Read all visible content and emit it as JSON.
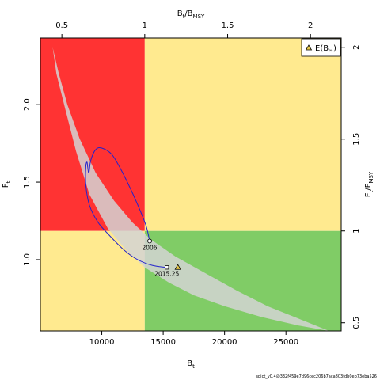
{
  "chart_data": {
    "type": "line",
    "x_axis": {
      "label": "B",
      "label_sub": "t",
      "lim": [
        5000,
        29500
      ],
      "ticks": [
        10000,
        15000,
        20000,
        25000
      ]
    },
    "y_axis": {
      "label": "F",
      "label_sub": "t",
      "lim": [
        0.54,
        2.43
      ],
      "ticks": [
        1.0,
        1.5,
        2.0
      ]
    },
    "top_axis": {
      "label": "B",
      "label_sub": "t",
      "label_tail": "/B",
      "label_sub2": "MSY",
      "ticks": [
        "0.5",
        "1",
        "1.5",
        "2"
      ],
      "tick_values": [
        0.5,
        1,
        1.5,
        2
      ]
    },
    "right_axis": {
      "label": "F",
      "label_sub": "t",
      "label_tail": "/F",
      "label_sub2": "MSY",
      "ticks": [
        "0.5",
        "1",
        "1.5",
        "2"
      ],
      "tick_values": [
        0.5,
        1,
        1.5,
        2
      ]
    },
    "reference": {
      "Bmsy": 13500,
      "Fmsy": 1.185
    },
    "regions": [
      {
        "name": "overfished-overfishing",
        "color": "#ff3333"
      },
      {
        "name": "overfishing-healthy-stock",
        "color": "#ffea8f"
      },
      {
        "name": "overfished-no-overfishing",
        "color": "#ffea8f"
      },
      {
        "name": "sustainable",
        "color": "#80cc66"
      }
    ],
    "confidence_region": {
      "color": "#d3d3d3",
      "outline": [
        [
          6000,
          2.37
        ],
        [
          6500,
          2.2
        ],
        [
          7200,
          2.0
        ],
        [
          8200,
          1.78
        ],
        [
          9500,
          1.56
        ],
        [
          11000,
          1.38
        ],
        [
          12500,
          1.24
        ],
        [
          14000,
          1.13
        ],
        [
          16000,
          1.02
        ],
        [
          18500,
          0.91
        ],
        [
          21000,
          0.8
        ],
        [
          23500,
          0.7
        ],
        [
          26000,
          0.62
        ],
        [
          28500,
          0.54
        ],
        [
          26000,
          0.575
        ],
        [
          23000,
          0.63
        ],
        [
          20000,
          0.7
        ],
        [
          17500,
          0.77
        ],
        [
          15500,
          0.85
        ],
        [
          13500,
          0.95
        ],
        [
          12000,
          1.06
        ],
        [
          10500,
          1.2
        ],
        [
          9000,
          1.42
        ],
        [
          7900,
          1.7
        ],
        [
          7000,
          1.98
        ],
        [
          6300,
          2.2
        ],
        [
          6000,
          2.37
        ]
      ]
    },
    "trajectory": {
      "color": "#2222cc",
      "points": [
        [
          13900,
          1.12
        ],
        [
          13600,
          1.22
        ],
        [
          13000,
          1.34
        ],
        [
          12200,
          1.48
        ],
        [
          11500,
          1.59
        ],
        [
          10800,
          1.68
        ],
        [
          10000,
          1.72
        ],
        [
          9500,
          1.71
        ],
        [
          9100,
          1.64
        ],
        [
          8950,
          1.56
        ],
        [
          8850,
          1.6
        ],
        [
          8800,
          1.63
        ],
        [
          8700,
          1.6
        ],
        [
          8700,
          1.48
        ],
        [
          9000,
          1.35
        ],
        [
          9700,
          1.24
        ],
        [
          10700,
          1.15
        ],
        [
          11700,
          1.07
        ],
        [
          12700,
          1.01
        ],
        [
          13800,
          0.97
        ],
        [
          14700,
          0.955
        ],
        [
          15300,
          0.95
        ]
      ]
    },
    "points": [
      {
        "label": "2006",
        "x": 13900,
        "y": 1.12,
        "marker": "circle"
      },
      {
        "label": "2015.25",
        "x": 15300,
        "y": 0.95,
        "marker": "square"
      },
      {
        "label": "E(B∞)",
        "x": 16200,
        "y": 0.95,
        "marker": "triangle"
      }
    ],
    "legend": {
      "position": "top-right",
      "label": "E(B",
      "label_sub": "∞",
      "label_tail": ")"
    },
    "footer_text": "spict_v0.4@332f459e7d96cec206b7aca803fdb0eb73eba526"
  }
}
